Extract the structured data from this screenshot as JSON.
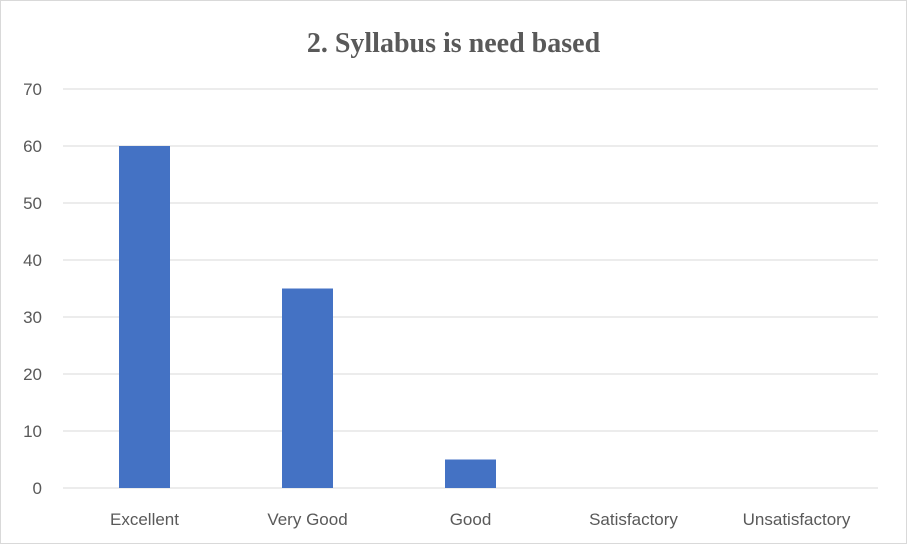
{
  "chart_data": {
    "type": "bar",
    "title": "2. Syllabus is need based",
    "categories": [
      "Excellent",
      "Very Good",
      "Good",
      "Satisfactory",
      "Unsatisfactory"
    ],
    "values": [
      60,
      35,
      5,
      0,
      0
    ],
    "xlabel": "",
    "ylabel": "",
    "ylim": [
      0,
      70
    ],
    "yticks": [
      0,
      10,
      20,
      30,
      40,
      50,
      60,
      70
    ],
    "grid": true,
    "legend": "none",
    "bar_color": "#4472c4",
    "grid_color": "#d9d9d9"
  }
}
